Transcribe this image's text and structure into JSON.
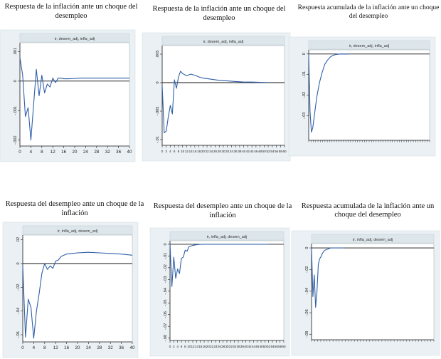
{
  "charts": [
    {
      "title": "Respuesta de la inflación ante un choque del desempleo",
      "header": "ir, desem_adj, infla_adj",
      "chart_data": {
        "type": "line",
        "x": [
          0,
          1,
          2,
          3,
          4,
          5,
          6,
          7,
          8,
          9,
          10,
          11,
          12,
          13,
          14,
          15,
          16,
          18,
          20,
          22,
          24,
          26,
          28,
          30,
          32,
          34,
          36,
          38,
          40
        ],
        "series": [
          {
            "values": [
              0.0008,
              0.0002,
              -0.0012,
              -0.0009,
              -0.002,
              -0.0008,
              0.0004,
              -0.0005,
              0.0002,
              -0.0004,
              -0.0001,
              -0.0002,
              0.0001,
              -5e-05,
              0.0001,
              0.0001,
              8e-05,
              8e-05,
              9e-05,
              0.0001,
              0.0001,
              0.0001,
              0.0001,
              0.0001,
              0.0001,
              0.0001,
              0.0001,
              0.0001,
              0.0001
            ]
          }
        ],
        "xticks": [
          "0",
          "4",
          "8",
          "12",
          "16",
          "20",
          "24",
          "28",
          "32",
          "36",
          "40"
        ],
        "xtickvals": [
          0,
          4,
          8,
          12,
          16,
          20,
          24,
          28,
          32,
          36,
          40
        ],
        "yticks": [
          ".001",
          "0",
          "-.001",
          "-.002"
        ],
        "ytickvals": [
          0.001,
          0,
          -0.001,
          -0.002
        ],
        "xlim": [
          0,
          40
        ],
        "ylim": [
          -0.0022,
          0.0013
        ]
      }
    },
    {
      "title": "Respuesta de la inflación ante un choque del desempleo",
      "header": "ir, desem_adj, infla_adj",
      "chart_data": {
        "type": "line",
        "x": [
          0,
          1,
          2,
          3,
          4,
          5,
          6,
          7,
          8,
          9,
          10,
          12,
          14,
          16,
          18,
          20,
          24,
          28,
          32,
          36,
          40,
          44,
          48,
          52
        ],
        "series": [
          {
            "values": [
              -0.0005,
              -0.0088,
              -0.0085,
              -0.006,
              -0.004,
              -0.0055,
              0.0005,
              -0.001,
              0.001,
              0.002,
              0.0016,
              0.0012,
              0.0015,
              0.0013,
              0.001,
              0.0008,
              0.0006,
              0.0004,
              0.0003,
              0.0002,
              0.0001,
              0.0001,
              5e-05,
              3e-05
            ]
          }
        ],
        "xticks": [
          "0",
          "2",
          "4",
          "6",
          "8",
          "10",
          "12",
          "14",
          "16",
          "18",
          "20",
          "22",
          "24",
          "26",
          "28",
          "30",
          "32",
          "34",
          "36",
          "38",
          "40",
          "42",
          "44",
          "46",
          "48",
          "50",
          "52",
          "54",
          "56",
          "58",
          "60"
        ],
        "xtickvals": [
          0,
          2,
          4,
          6,
          8,
          10,
          12,
          14,
          16,
          18,
          20,
          22,
          24,
          26,
          28,
          30,
          32,
          34,
          36,
          38,
          40,
          42,
          44,
          46,
          48,
          50,
          52,
          54,
          56,
          58,
          60
        ],
        "yticks": [
          ".005",
          "0",
          "-.005",
          "-.01"
        ],
        "ytickvals": [
          0.005,
          0,
          -0.005,
          -0.01
        ],
        "xlim": [
          0,
          60
        ],
        "ylim": [
          -0.011,
          0.0065
        ]
      }
    },
    {
      "title": "Respuesta acumulada de la inflación ante un choque del desempleo",
      "header": "ir, desem_adj, infla_adj",
      "chart_data": {
        "type": "line",
        "x": [
          0,
          1,
          2,
          3,
          4,
          5,
          6,
          8,
          10,
          12,
          14,
          16,
          18,
          20,
          22,
          24,
          26,
          28,
          30
        ],
        "series": [
          {
            "values": [
              0,
              -0.028,
              -0.038,
              -0.036,
              -0.031,
              -0.026,
              -0.021,
              -0.014,
              -0.009,
              -0.005,
              -0.003,
              -0.0015,
              -0.0007,
              -0.0003,
              -0.0001,
              0,
              0,
              0,
              0
            ]
          }
        ],
        "yticks": [
          "0",
          "-.01",
          "-.02",
          "-.03"
        ],
        "ytickvals": [
          0,
          -0.01,
          -0.02,
          -0.03
        ],
        "xlim": [
          0,
          90
        ],
        "ylim": [
          -0.042,
          0.002
        ],
        "xminor_count": 52
      }
    },
    {
      "title": "Respuesta del desempleo ante un choque de la inflación",
      "header": "ir, infla_adj, desem_adj",
      "chart_data": {
        "type": "line",
        "x": [
          0,
          1,
          2,
          3,
          4,
          5,
          6,
          7,
          8,
          9,
          10,
          11,
          12,
          13,
          14,
          16,
          18,
          20,
          24,
          28,
          32,
          36,
          40
        ],
        "series": [
          {
            "values": [
              -0.002,
              -0.062,
              -0.03,
              -0.037,
              -0.063,
              -0.04,
              -0.025,
              -0.008,
              0.0,
              -0.005,
              -0.002,
              -0.004,
              0.002,
              0.003,
              0.006,
              0.008,
              0.0085,
              0.009,
              0.0095,
              0.009,
              0.0085,
              0.008,
              0.007
            ]
          }
        ],
        "xticks": [
          "0",
          "4",
          "8",
          "12",
          "16",
          "20",
          "24",
          "28",
          "32",
          "36",
          "40"
        ],
        "xtickvals": [
          0,
          4,
          8,
          12,
          16,
          20,
          24,
          28,
          32,
          36,
          40
        ],
        "yticks": [
          ".02",
          "0",
          "-.02",
          "-.04",
          "-.06"
        ],
        "ytickvals": [
          0.02,
          0,
          -0.02,
          -0.04,
          -0.06
        ],
        "xlim": [
          0,
          40
        ],
        "ylim": [
          -0.066,
          0.024
        ]
      }
    },
    {
      "title": "Respuesta del desempleo ante un choque de la inflación",
      "header": "ir, infla_adj, desem_adj",
      "chart_data": {
        "type": "line",
        "x": [
          0,
          1,
          2,
          3,
          4,
          5,
          6,
          7,
          8,
          9,
          10,
          12,
          14,
          16,
          18,
          20,
          24,
          28,
          32,
          36,
          40,
          44,
          48,
          52
        ],
        "series": [
          {
            "values": [
              0,
              -0.036,
              -0.011,
              -0.029,
              -0.021,
              -0.025,
              -0.012,
              -0.011,
              -0.005,
              -0.006,
              -0.002,
              -0.001,
              -0.0004,
              -0.0001,
              0,
              0,
              0,
              0,
              0,
              0,
              0,
              0,
              0,
              0
            ]
          }
        ],
        "xticks": [
          "0",
          "2",
          "4",
          "6",
          "8",
          "10",
          "12",
          "14",
          "16",
          "18",
          "20",
          "22",
          "24",
          "26",
          "28",
          "30",
          "32",
          "34",
          "36",
          "38",
          "40",
          "42",
          "44",
          "46",
          "48",
          "50",
          "52",
          "54",
          "56",
          "58",
          "60"
        ],
        "xtickvals": [
          0,
          2,
          4,
          6,
          8,
          10,
          12,
          14,
          16,
          18,
          20,
          22,
          24,
          26,
          28,
          30,
          32,
          34,
          36,
          38,
          40,
          42,
          44,
          46,
          48,
          50,
          52,
          54,
          56,
          58,
          60
        ],
        "yticks": [
          "0",
          "-.01",
          "-.02",
          "-.03",
          "-.04",
          "-.05",
          "-.06",
          "-.07",
          "-.08"
        ],
        "ytickvals": [
          0,
          -0.01,
          -0.02,
          -0.03,
          -0.04,
          -0.05,
          -0.06,
          -0.07,
          -0.08
        ],
        "xlim": [
          0,
          60
        ],
        "ylim": [
          -0.082,
          0.003
        ]
      }
    },
    {
      "title": "Respuesta acumulada de la inflación ante un choque del desempleo",
      "header": "ir, infla_adj, desem_adj",
      "chart_data": {
        "type": "line",
        "x": [
          0,
          1,
          2,
          3,
          4,
          5,
          6,
          7,
          8,
          9,
          10,
          12,
          14,
          16,
          18,
          20,
          24
        ],
        "series": [
          {
            "values": [
              0,
              -0.045,
              -0.025,
              -0.055,
              -0.04,
              -0.015,
              -0.01,
              -0.008,
              -0.005,
              -0.003,
              -0.002,
              -0.001,
              0,
              0,
              0,
              0,
              0
            ]
          }
        ],
        "yticks": [
          "0",
          "-.02",
          "-.04",
          "-.06",
          "-.08"
        ],
        "ytickvals": [
          0,
          -0.02,
          -0.04,
          -0.06,
          -0.08
        ],
        "xlim": [
          0,
          90
        ],
        "ylim": [
          -0.085,
          0.004
        ],
        "xminor_count": 40
      }
    }
  ]
}
